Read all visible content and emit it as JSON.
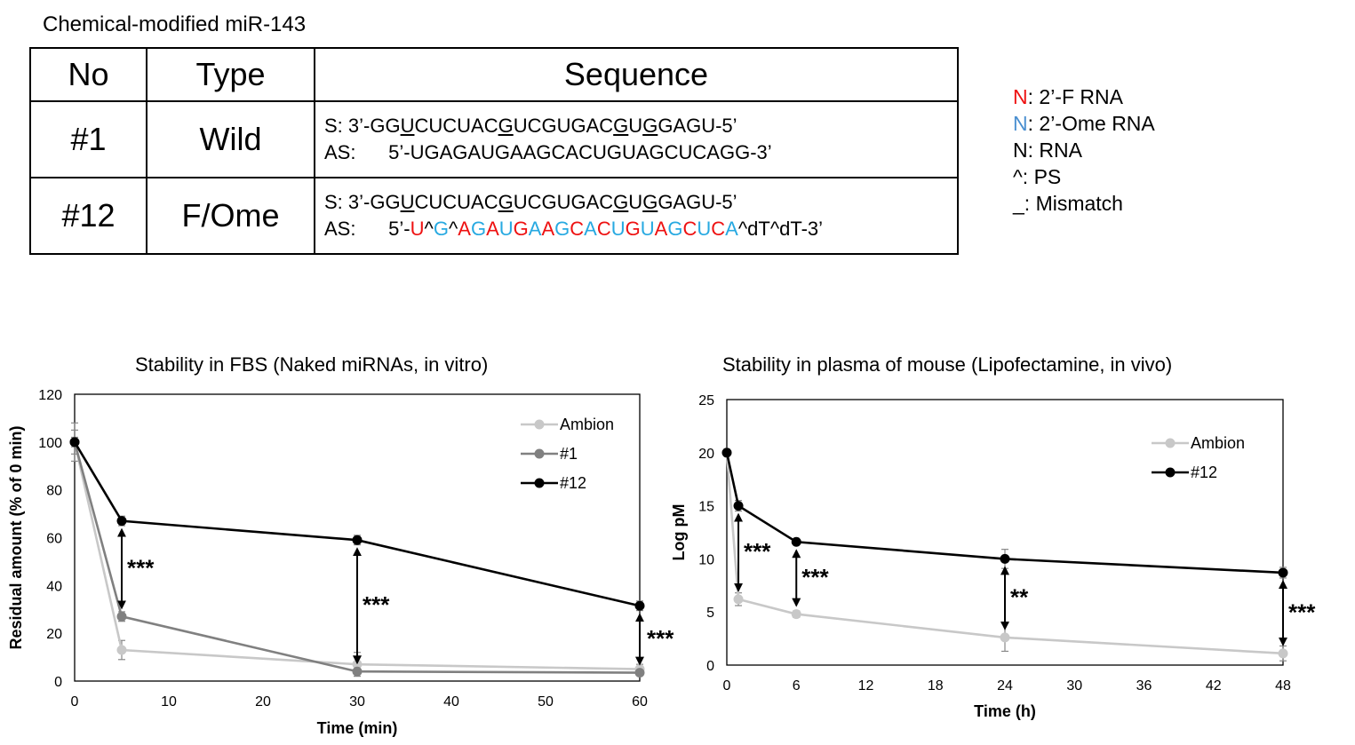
{
  "title": "Chemical-modified miR-143",
  "table": {
    "headers": [
      "No",
      "Type",
      "Sequence"
    ],
    "rows": [
      {
        "no": "#1",
        "type": "Wild",
        "s_parts": [
          {
            "t": "S: 3’-GG",
            "c": ""
          },
          {
            "t": "U",
            "c": "u"
          },
          {
            "t": "CUCUAC",
            "c": ""
          },
          {
            "t": "G",
            "c": "u"
          },
          {
            "t": "UCGUGAC",
            "c": ""
          },
          {
            "t": "G",
            "c": "u"
          },
          {
            "t": "U",
            "c": ""
          },
          {
            "t": "G",
            "c": "u"
          },
          {
            "t": "GAGU-5’",
            "c": ""
          }
        ],
        "as_parts": [
          {
            "t": "AS:      5’-UGAGAUGAAGCACUGUAGCUCAGG-3’",
            "c": ""
          }
        ]
      },
      {
        "no": "#12",
        "type": "F/Ome",
        "s_parts": [
          {
            "t": "S: 3’-GG",
            "c": ""
          },
          {
            "t": "U",
            "c": "u"
          },
          {
            "t": "CUCUAC",
            "c": ""
          },
          {
            "t": "G",
            "c": "u"
          },
          {
            "t": "UCGUGAC",
            "c": ""
          },
          {
            "t": "G",
            "c": "u"
          },
          {
            "t": "U",
            "c": ""
          },
          {
            "t": "G",
            "c": "u"
          },
          {
            "t": "GAGU-5’",
            "c": ""
          }
        ],
        "as_parts": [
          {
            "t": "AS:      5’-",
            "c": ""
          },
          {
            "t": "U",
            "c": "red"
          },
          {
            "t": "^",
            "c": ""
          },
          {
            "t": "G",
            "c": "blue"
          },
          {
            "t": "^",
            "c": ""
          },
          {
            "t": "A",
            "c": "red"
          },
          {
            "t": "G",
            "c": "blue"
          },
          {
            "t": "A",
            "c": "red"
          },
          {
            "t": "U",
            "c": "blue"
          },
          {
            "t": "G",
            "c": "red"
          },
          {
            "t": "A",
            "c": "blue"
          },
          {
            "t": "A",
            "c": "red"
          },
          {
            "t": "G",
            "c": "blue"
          },
          {
            "t": "C",
            "c": "red"
          },
          {
            "t": "A",
            "c": "blue"
          },
          {
            "t": "C",
            "c": "red"
          },
          {
            "t": "U",
            "c": "blue"
          },
          {
            "t": "G",
            "c": "red"
          },
          {
            "t": "U",
            "c": "blue"
          },
          {
            "t": "A",
            "c": "red"
          },
          {
            "t": "G",
            "c": "blue"
          },
          {
            "t": "C",
            "c": "red"
          },
          {
            "t": "U",
            "c": "blue"
          },
          {
            "t": "C",
            "c": "red"
          },
          {
            "t": "A",
            "c": "blue"
          },
          {
            "t": "^dT^dT-3’",
            "c": ""
          }
        ]
      }
    ]
  },
  "legend": [
    {
      "mark": "N",
      "rest": ": 2’-F RNA",
      "color": "#ee1111"
    },
    {
      "mark": "N",
      "rest": ": 2’-Ome RNA",
      "color": "#4a8fd0"
    },
    {
      "mark": "N",
      "rest": ": RNA",
      "color": "#000000"
    },
    {
      "mark": "^",
      "rest": ": PS",
      "color": "#000000"
    },
    {
      "mark": "_",
      "rest": ": Mismatch",
      "color": "#000000"
    }
  ],
  "chart_data": [
    {
      "type": "line",
      "title": "Stability in FBS (Naked miRNAs, in vitro)",
      "xlabel": "Time (min)",
      "ylabel": "Residual amount (% of 0 min)",
      "xlim": [
        0,
        60
      ],
      "ylim": [
        0,
        120
      ],
      "xticks": [
        0,
        10,
        20,
        30,
        40,
        50,
        60
      ],
      "yticks": [
        0,
        20,
        40,
        60,
        80,
        100,
        120
      ],
      "legend_position": "top-right",
      "series": [
        {
          "name": "Ambion",
          "color": "#c8c8c8",
          "x": [
            0,
            5,
            30,
            60
          ],
          "y": [
            100,
            13,
            7,
            5
          ],
          "err": [
            8,
            4,
            5,
            2
          ]
        },
        {
          "name": "#1",
          "color": "#808080",
          "x": [
            0,
            5,
            30,
            60
          ],
          "y": [
            100,
            27,
            4,
            3.5
          ],
          "err": [
            5,
            2,
            1,
            1
          ]
        },
        {
          "name": "#12",
          "color": "#000000",
          "x": [
            0,
            5,
            30,
            60
          ],
          "y": [
            100,
            67,
            59,
            31.5
          ],
          "err": [
            2,
            2,
            2,
            2
          ]
        }
      ],
      "annotations": [
        {
          "x": 5,
          "y_from": 27,
          "y_to": 67,
          "label": "***"
        },
        {
          "x": 30,
          "y_from": 4,
          "y_to": 59,
          "label": "***"
        },
        {
          "x": 60,
          "y_from": 3.5,
          "y_to": 31.5,
          "label": "***"
        }
      ]
    },
    {
      "type": "line",
      "title": "Stability in plasma of mouse (Lipofectamine, in vivo)",
      "xlabel": "Time (h)",
      "ylabel": "Log pM",
      "xlim": [
        0,
        48
      ],
      "ylim": [
        0,
        25
      ],
      "xticks": [
        0,
        6,
        12,
        18,
        24,
        30,
        36,
        42,
        48
      ],
      "yticks": [
        0,
        5,
        10,
        15,
        20,
        25
      ],
      "legend_position": "top-right",
      "series": [
        {
          "name": "Ambion",
          "color": "#c8c8c8",
          "x": [
            0,
            1,
            6,
            24,
            48
          ],
          "y": [
            20,
            6.2,
            4.8,
            2.6,
            1.1
          ],
          "err": [
            0,
            0.6,
            0.3,
            1.3,
            0.7
          ]
        },
        {
          "name": "#12",
          "color": "#000000",
          "x": [
            0,
            1,
            6,
            24,
            48
          ],
          "y": [
            20,
            15,
            11.6,
            10,
            8.7
          ],
          "err": [
            0,
            0.5,
            0.2,
            0.9,
            0.5
          ]
        }
      ],
      "annotations": [
        {
          "x": 1,
          "y_from": 6.2,
          "y_to": 15,
          "label": "***"
        },
        {
          "x": 6,
          "y_from": 4.8,
          "y_to": 11.6,
          "label": "***"
        },
        {
          "x": 24,
          "y_from": 2.6,
          "y_to": 10,
          "label": "**"
        },
        {
          "x": 48,
          "y_from": 1.1,
          "y_to": 8.7,
          "label": "***"
        }
      ]
    }
  ]
}
